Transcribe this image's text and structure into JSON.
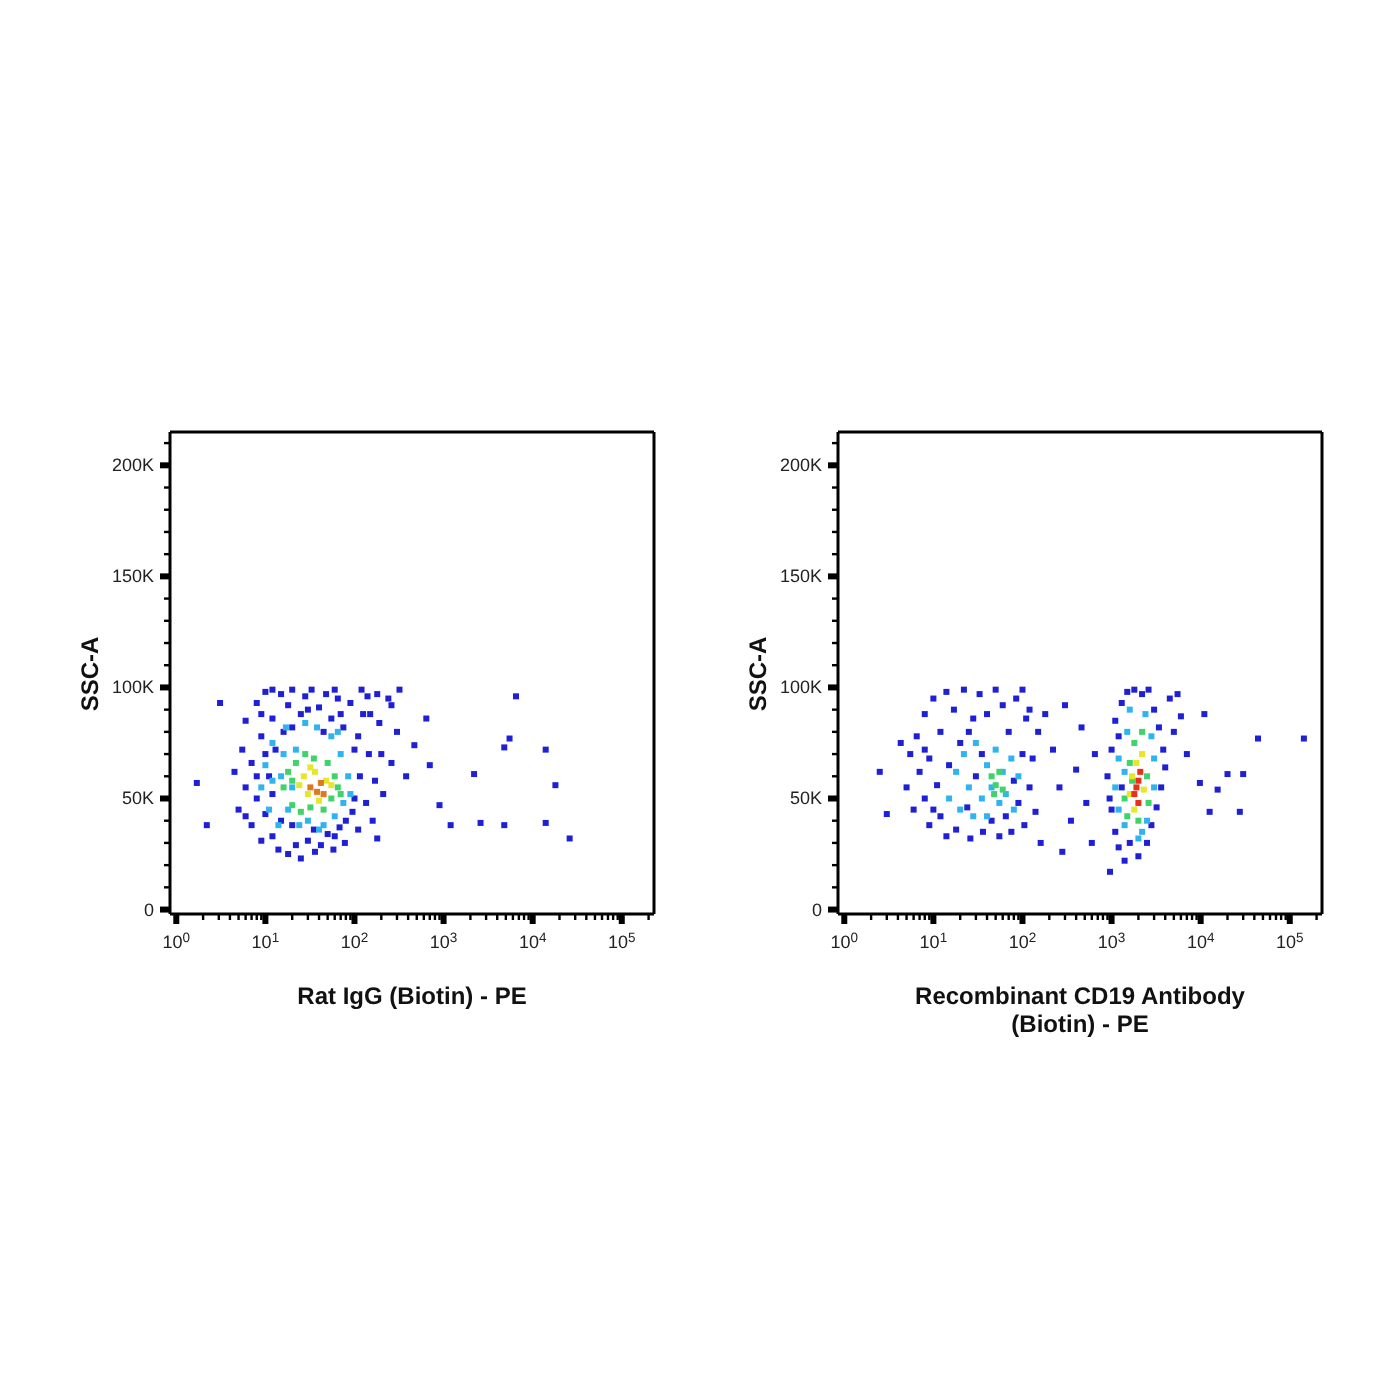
{
  "chart_data": [
    {
      "type": "scatter",
      "xlabel": "Rat IgG (Biotin) - PE",
      "ylabel": "SSC-A",
      "log": "x",
      "marker": "square",
      "xlim": [
        0.85,
        230000
      ],
      "ylim": [
        -2000,
        215000
      ],
      "xticks": [
        {
          "value": 1,
          "label": "10$^{0}$"
        },
        {
          "value": 2,
          "label": null
        },
        {
          "value": 3,
          "label": null
        },
        {
          "value": 4,
          "label": null
        },
        {
          "value": 5,
          "label": null
        },
        {
          "value": 6,
          "label": null
        },
        {
          "value": 7,
          "label": null
        },
        {
          "value": 8,
          "label": null
        },
        {
          "value": 9,
          "label": null
        },
        {
          "value": 10,
          "label": "10$^{1}$"
        },
        {
          "value": 20,
          "label": null
        },
        {
          "value": 30,
          "label": null
        },
        {
          "value": 40,
          "label": null
        },
        {
          "value": 50,
          "label": null
        },
        {
          "value": 60,
          "label": null
        },
        {
          "value": 70,
          "label": null
        },
        {
          "value": 80,
          "label": null
        },
        {
          "value": 90,
          "label": null
        },
        {
          "value": 100,
          "label": "10$^{2}$"
        },
        {
          "value": 200,
          "label": null
        },
        {
          "value": 300,
          "label": null
        },
        {
          "value": 400,
          "label": null
        },
        {
          "value": 500,
          "label": null
        },
        {
          "value": 600,
          "label": null
        },
        {
          "value": 700,
          "label": null
        },
        {
          "value": 800,
          "label": null
        },
        {
          "value": 900,
          "label": null
        },
        {
          "value": 1000,
          "label": "10$^{3}$"
        },
        {
          "value": 2000,
          "label": null
        },
        {
          "value": 3000,
          "label": null
        },
        {
          "value": 4000,
          "label": null
        },
        {
          "value": 5000,
          "label": null
        },
        {
          "value": 6000,
          "label": null
        },
        {
          "value": 7000,
          "label": null
        },
        {
          "value": 8000,
          "label": null
        },
        {
          "value": 9000,
          "label": null
        },
        {
          "value": 10000,
          "label": "10$^{4}$"
        },
        {
          "value": 20000,
          "label": null
        },
        {
          "value": 30000,
          "label": null
        },
        {
          "value": 40000,
          "label": null
        },
        {
          "value": 50000,
          "label": null
        },
        {
          "value": 60000,
          "label": null
        },
        {
          "value": 70000,
          "label": null
        },
        {
          "value": 80000,
          "label": null
        },
        {
          "value": 90000,
          "label": null
        },
        {
          "value": 100000,
          "label": "10$^{5}$"
        },
        {
          "value": 200000,
          "label": null
        }
      ],
      "yticks": [
        0,
        {
          "value": 10000,
          "label": null
        },
        {
          "value": 20000,
          "label": null
        },
        {
          "value": 30000,
          "label": null
        },
        {
          "value": 40000,
          "label": null
        },
        {
          "value": 50000,
          "label": "50K"
        },
        {
          "value": 60000,
          "label": null
        },
        {
          "value": 70000,
          "label": null
        },
        {
          "value": 80000,
          "label": null
        },
        {
          "value": 90000,
          "label": null
        },
        {
          "value": 100000,
          "label": "100K"
        },
        {
          "value": 110000,
          "label": null
        },
        {
          "value": 120000,
          "label": null
        },
        {
          "value": 130000,
          "label": null
        },
        {
          "value": 140000,
          "label": null
        },
        {
          "value": 150000,
          "label": "150K"
        },
        {
          "value": 160000,
          "label": null
        },
        {
          "value": 170000,
          "label": null
        },
        {
          "value": 180000,
          "label": null
        },
        {
          "value": 190000,
          "label": null
        },
        {
          "value": 200000,
          "label": "200K"
        },
        {
          "value": 210000,
          "label": null
        }
      ],
      "series": [
        {
          "color": "#1f1fd6",
          "x": [
            4.5,
            5,
            5.5,
            6,
            6,
            7,
            7,
            8,
            8,
            9,
            9,
            10,
            10,
            11,
            12,
            12,
            13,
            14,
            15,
            16,
            18,
            18,
            20,
            22,
            25,
            25,
            28,
            30,
            33,
            36,
            40,
            42,
            48,
            50,
            55,
            58,
            65,
            68,
            75,
            78,
            90,
            95,
            100,
            110,
            115,
            125,
            135,
            145,
            160,
            170,
            190,
            210,
            240,
            260,
            300,
            180,
            12,
            60,
            120,
            180,
            10,
            12,
            15,
            20,
            30,
            45,
            70,
            100,
            110,
            80,
            20,
            35,
            60,
            150,
            8,
            9,
            140,
            200,
            260,
            6,
            3.1,
            2.2,
            1.7,
            320,
            470,
            640,
            900,
            1200,
            2200,
            2600,
            4800,
            5500,
            6500,
            14000,
            18000,
            26000,
            14000,
            4800,
            380,
            700
          ],
          "values": [
            62000,
            45000,
            72000,
            55000,
            85000,
            38000,
            66000,
            93000,
            50000,
            31000,
            78000,
            98000,
            43000,
            60000,
            86000,
            33000,
            72000,
            27000,
            97000,
            80000,
            25000,
            92000,
            99000,
            29000,
            88000,
            23000,
            96000,
            31000,
            99000,
            26000,
            91000,
            29000,
            97000,
            34000,
            86000,
            27000,
            95000,
            37000,
            82000,
            30000,
            93000,
            44000,
            72000,
            36000,
            60000,
            88000,
            48000,
            70000,
            40000,
            58000,
            84000,
            52000,
            95000,
            66000,
            80000,
            32000,
            99000,
            99000,
            99000,
            97000,
            70000,
            52000,
            40000,
            82000,
            90000,
            80000,
            88000,
            50000,
            78000,
            40000,
            38000,
            36000,
            33000,
            88000,
            60000,
            88000,
            96000,
            70000,
            92000,
            42000,
            93000,
            38000,
            57000,
            99000,
            74000,
            86000,
            47000,
            38000,
            61000,
            39000,
            73000,
            77000,
            96000,
            72000,
            56000,
            32000,
            39000,
            38000,
            60000,
            65000
          ]
        },
        {
          "color": "#2fb4f0",
          "x": [
            9,
            10,
            11,
            12,
            14,
            15,
            17,
            18,
            22,
            24,
            28,
            30,
            38,
            45,
            55,
            60,
            70,
            75,
            85,
            90,
            12,
            16,
            40,
            65,
            20
          ],
          "values": [
            55000,
            65000,
            45000,
            75000,
            38000,
            60000,
            82000,
            45000,
            72000,
            38000,
            84000,
            40000,
            82000,
            38000,
            78000,
            42000,
            70000,
            48000,
            60000,
            52000,
            58000,
            70000,
            36000,
            80000,
            55000
          ]
        },
        {
          "color": "#3fd46a",
          "x": [
            16,
            18,
            20,
            22,
            25,
            28,
            32,
            35,
            45,
            50,
            55,
            60,
            65,
            20,
            70
          ],
          "values": [
            55000,
            62000,
            47000,
            66000,
            44000,
            70000,
            46000,
            68000,
            45000,
            66000,
            50000,
            60000,
            55000,
            58000,
            52000
          ]
        },
        {
          "color": "#e6e62a",
          "x": [
            24,
            27,
            30,
            36,
            40,
            48,
            55,
            32
          ],
          "values": [
            56000,
            60000,
            52000,
            62000,
            49000,
            58000,
            56000,
            64000
          ]
        },
        {
          "color": "#e0781e",
          "x": [
            32,
            38,
            42,
            45
          ],
          "values": [
            55000,
            53000,
            57000,
            52000
          ]
        }
      ]
    },
    {
      "type": "scatter",
      "xlabel": "Recombinant CD19 Antibody (Biotin) - PE",
      "ylabel": "SSC-A",
      "log": "x",
      "marker": "square",
      "xlim": [
        0.85,
        230000
      ],
      "ylim": [
        -2000,
        215000
      ],
      "xticks": [
        {
          "value": 1,
          "label": "10$^{0}$"
        },
        {
          "value": 2,
          "label": null
        },
        {
          "value": 3,
          "label": null
        },
        {
          "value": 4,
          "label": null
        },
        {
          "value": 5,
          "label": null
        },
        {
          "value": 6,
          "label": null
        },
        {
          "value": 7,
          "label": null
        },
        {
          "value": 8,
          "label": null
        },
        {
          "value": 9,
          "label": null
        },
        {
          "value": 10,
          "label": "10$^{1}$"
        },
        {
          "value": 20,
          "label": null
        },
        {
          "value": 30,
          "label": null
        },
        {
          "value": 40,
          "label": null
        },
        {
          "value": 50,
          "label": null
        },
        {
          "value": 60,
          "label": null
        },
        {
          "value": 70,
          "label": null
        },
        {
          "value": 80,
          "label": null
        },
        {
          "value": 90,
          "label": null
        },
        {
          "value": 100,
          "label": "10$^{2}$"
        },
        {
          "value": 200,
          "label": null
        },
        {
          "value": 300,
          "label": null
        },
        {
          "value": 400,
          "label": null
        },
        {
          "value": 500,
          "label": null
        },
        {
          "value": 600,
          "label": null
        },
        {
          "value": 700,
          "label": null
        },
        {
          "value": 800,
          "label": null
        },
        {
          "value": 900,
          "label": null
        },
        {
          "value": 1000,
          "label": "10$^{3}$"
        },
        {
          "value": 2000,
          "label": null
        },
        {
          "value": 3000,
          "label": null
        },
        {
          "value": 4000,
          "label": null
        },
        {
          "value": 5000,
          "label": null
        },
        {
          "value": 6000,
          "label": null
        },
        {
          "value": 7000,
          "label": null
        },
        {
          "value": 8000,
          "label": null
        },
        {
          "value": 9000,
          "label": null
        },
        {
          "value": 10000,
          "label": "10$^{4}$"
        },
        {
          "value": 20000,
          "label": null
        },
        {
          "value": 30000,
          "label": null
        },
        {
          "value": 40000,
          "label": null
        },
        {
          "value": 50000,
          "label": null
        },
        {
          "value": 60000,
          "label": null
        },
        {
          "value": 70000,
          "label": null
        },
        {
          "value": 80000,
          "label": null
        },
        {
          "value": 90000,
          "label": null
        },
        {
          "value": 100000,
          "label": "10$^{5}$"
        },
        {
          "value": 200000,
          "label": null
        }
      ],
      "yticks": [
        0,
        {
          "value": 10000,
          "label": null
        },
        {
          "value": 20000,
          "label": null
        },
        {
          "value": 30000,
          "label": null
        },
        {
          "value": 40000,
          "label": null
        },
        {
          "value": 50000,
          "label": "50K"
        },
        {
          "value": 60000,
          "label": null
        },
        {
          "value": 70000,
          "label": null
        },
        {
          "value": 80000,
          "label": null
        },
        {
          "value": 90000,
          "label": null
        },
        {
          "value": 100000,
          "label": "100K"
        },
        {
          "value": 110000,
          "label": null
        },
        {
          "value": 120000,
          "label": null
        },
        {
          "value": 130000,
          "label": null
        },
        {
          "value": 140000,
          "label": null
        },
        {
          "value": 150000,
          "label": "150K"
        },
        {
          "value": 160000,
          "label": null
        },
        {
          "value": 170000,
          "label": null
        },
        {
          "value": 180000,
          "label": null
        },
        {
          "value": 190000,
          "label": null
        },
        {
          "value": 200000,
          "label": "200K"
        },
        {
          "value": 210000,
          "label": null
        }
      ],
      "series": [
        {
          "color": "#1f1fd6",
          "x": [
            5,
            5.5,
            6,
            6.5,
            7,
            8,
            8,
            9,
            9,
            10,
            11,
            12,
            12,
            14,
            14,
            15,
            17,
            18,
            20,
            22,
            24,
            26,
            28,
            30,
            33,
            36,
            40,
            45,
            50,
            55,
            60,
            65,
            70,
            75,
            85,
            90,
            100,
            105,
            110,
            120,
            130,
            140,
            150,
            100,
            8,
            10,
            25,
            35,
            80,
            120,
            3,
            4.3,
            2.5,
            180,
            220,
            260,
            300,
            350,
            400,
            460,
            520,
            600,
            280,
            650,
            160,
            900,
            1000,
            1000,
            1100,
            1100,
            1200,
            1300,
            1300,
            1400,
            1500,
            1600,
            1800,
            2000,
            2200,
            2500,
            2600,
            2800,
            3000,
            3200,
            3400,
            3600,
            3800,
            4000,
            4500,
            5000,
            1200,
            950,
            960,
            5500,
            6000,
            7000,
            11000,
            44000,
            144000,
            20000,
            30000,
            15500,
            27500,
            12600,
            9800
          ],
          "values": [
            55000,
            70000,
            45000,
            78000,
            62000,
            50000,
            88000,
            38000,
            68000,
            95000,
            56000,
            42000,
            80000,
            33000,
            98000,
            65000,
            90000,
            36000,
            75000,
            99000,
            46000,
            32000,
            86000,
            60000,
            97000,
            35000,
            88000,
            40000,
            99000,
            33000,
            92000,
            42000,
            80000,
            35000,
            95000,
            48000,
            70000,
            38000,
            86000,
            55000,
            68000,
            44000,
            80000,
            99000,
            72000,
            45000,
            80000,
            70000,
            58000,
            90000,
            43000,
            75000,
            62000,
            88000,
            72000,
            55000,
            92000,
            40000,
            63000,
            82000,
            48000,
            30000,
            26000,
            70000,
            30000,
            60000,
            45000,
            72000,
            35000,
            85000,
            28000,
            93000,
            55000,
            22000,
            98000,
            30000,
            99000,
            24000,
            97000,
            30000,
            99000,
            38000,
            90000,
            46000,
            82000,
            55000,
            72000,
            64000,
            95000,
            80000,
            78000,
            50000,
            17000,
            97000,
            87000,
            70000,
            88000,
            77000,
            77000,
            61000,
            61000,
            54000,
            44000,
            44000,
            57000
          ]
        },
        {
          "color": "#2fb4f0",
          "x": [
            15,
            18,
            20,
            22,
            25,
            28,
            30,
            35,
            40,
            45,
            50,
            55,
            60,
            65,
            75,
            80,
            90,
            40,
            1100,
            1200,
            1200,
            1400,
            1500,
            1600,
            2000,
            2400,
            2500,
            2800,
            3000,
            3000,
            1400,
            2200
          ],
          "values": [
            50000,
            62000,
            45000,
            70000,
            55000,
            42000,
            75000,
            50000,
            65000,
            55000,
            72000,
            48000,
            62000,
            52000,
            68000,
            45000,
            60000,
            42000,
            55000,
            45000,
            68000,
            38000,
            80000,
            90000,
            32000,
            88000,
            40000,
            78000,
            55000,
            68000,
            62000,
            35000
          ]
        },
        {
          "color": "#3fd46a",
          "x": [
            45,
            50,
            55,
            60,
            48,
            1400,
            1500,
            1600,
            1800,
            2000,
            2200,
            2500,
            2600,
            1700
          ],
          "values": [
            60000,
            56000,
            62000,
            54000,
            52000,
            50000,
            42000,
            66000,
            75000,
            40000,
            80000,
            60000,
            48000,
            58000
          ]
        },
        {
          "color": "#e6e62a",
          "x": [
            1600,
            1800,
            1900,
            2200,
            2300,
            1700
          ],
          "values": [
            52000,
            45000,
            66000,
            70000,
            54000,
            60000
          ]
        },
        {
          "color": "#e8301c",
          "x": [
            1800,
            2000,
            2000,
            2100,
            1900
          ],
          "values": [
            52000,
            58000,
            48000,
            62000,
            55000
          ]
        }
      ]
    }
  ]
}
